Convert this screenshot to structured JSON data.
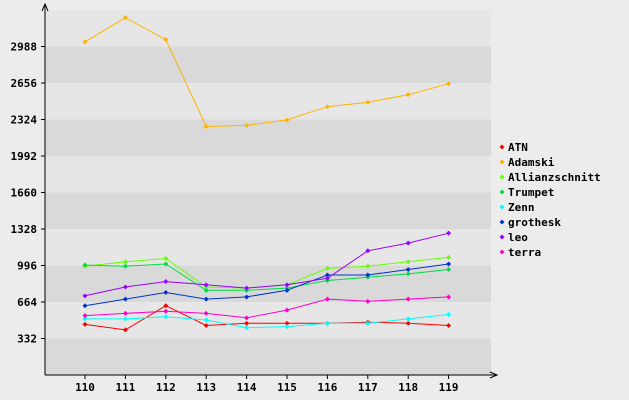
{
  "chart_data": {
    "type": "line",
    "title": "",
    "xlabel": "",
    "ylabel": "",
    "categories": [
      "110",
      "111",
      "112",
      "113",
      "114",
      "115",
      "116",
      "117",
      "118",
      "119"
    ],
    "y_ticks": [
      "332",
      "664",
      "996",
      "1328",
      "1660",
      "1992",
      "2324",
      "2656",
      "2988"
    ],
    "y_tick_values": [
      332,
      664,
      996,
      1328,
      1660,
      1992,
      2324,
      2656,
      2988
    ],
    "ylim": [
      0,
      3320
    ],
    "grid": "horizontal bands",
    "legend_position": "right",
    "series": [
      {
        "name": "ATN",
        "color": "#ff0000",
        "values": [
          460,
          410,
          630,
          450,
          470,
          470,
          470,
          480,
          470,
          450
        ]
      },
      {
        "name": "Adamski",
        "color": "#ffb300",
        "values": [
          3030,
          3250,
          3050,
          2260,
          2270,
          2320,
          2440,
          2480,
          2550,
          2650
        ]
      },
      {
        "name": "Allianzschnitt",
        "color": "#66ff00",
        "values": [
          990,
          1030,
          1060,
          800,
          790,
          820,
          970,
          990,
          1030,
          1070
        ]
      },
      {
        "name": "Trumpet",
        "color": "#00dd44",
        "values": [
          1000,
          990,
          1010,
          770,
          770,
          790,
          860,
          890,
          920,
          960
        ]
      },
      {
        "name": "Zenn",
        "color": "#00ffff",
        "values": [
          510,
          510,
          530,
          500,
          430,
          440,
          470,
          470,
          510,
          550
        ]
      },
      {
        "name": "grothesk",
        "color": "#0033cc",
        "values": [
          630,
          690,
          750,
          690,
          710,
          770,
          910,
          910,
          960,
          1010
        ]
      },
      {
        "name": "leo",
        "color": "#9900ff",
        "values": [
          720,
          800,
          850,
          820,
          790,
          820,
          880,
          1130,
          1200,
          1290
        ]
      },
      {
        "name": "terra",
        "color": "#ff00cc",
        "values": [
          540,
          560,
          580,
          560,
          520,
          590,
          690,
          670,
          690,
          710
        ]
      }
    ]
  }
}
